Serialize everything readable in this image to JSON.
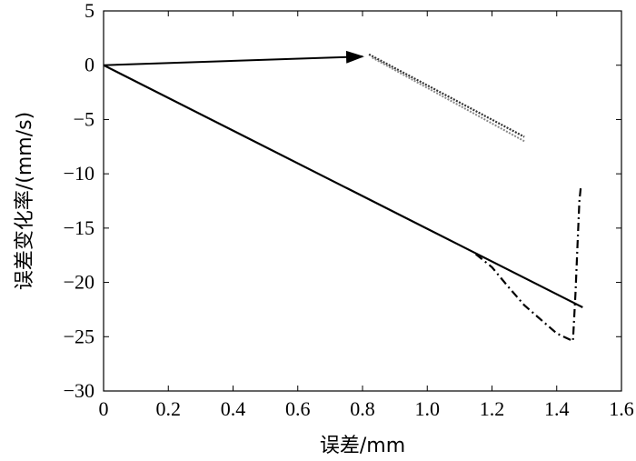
{
  "chart_data": {
    "type": "line",
    "xlabel": "误差/mm",
    "ylabel": "误差变化率/(mm/s)",
    "xlim": [
      0,
      1.6
    ],
    "ylim": [
      -30,
      5
    ],
    "x_ticks": [
      0,
      0.2,
      0.4,
      0.6,
      0.8,
      1.0,
      1.2,
      1.4,
      1.6
    ],
    "x_tick_labels": [
      "0",
      "0.2",
      "0.4",
      "0.6",
      "0.8",
      "1.0",
      "1.2",
      "1.4",
      "1.6"
    ],
    "y_ticks": [
      5,
      0,
      -5,
      -10,
      -15,
      -20,
      -25,
      -30
    ],
    "y_tick_labels": [
      "5",
      "0",
      "−5",
      "−10",
      "−15",
      "−20",
      "−25",
      "−30"
    ],
    "grid": false,
    "series": [
      {
        "style": "solid",
        "x": [
          0,
          1.48
        ],
        "y": [
          0,
          -22.3
        ]
      },
      {
        "style": "dash-dot",
        "x": [
          1.15,
          1.2,
          1.25,
          1.3,
          1.35,
          1.4,
          1.45,
          1.458,
          1.465,
          1.47,
          1.475
        ],
        "y": [
          -17.4,
          -18.6,
          -20.4,
          -22.1,
          -23.4,
          -24.7,
          -25.4,
          -21.0,
          -16.0,
          -12.5,
          -11.0
        ]
      },
      {
        "style": "dotted-dark",
        "x": [
          0.82,
          1.3
        ],
        "y": [
          1.0,
          -6.6
        ]
      },
      {
        "style": "dotted-light",
        "x": [
          0.83,
          1.3
        ],
        "y": [
          0.7,
          -7.0
        ]
      }
    ],
    "annotations": [
      {
        "type": "arrow",
        "from": [
          0,
          0
        ],
        "to": [
          0.8,
          0.8
        ]
      }
    ]
  }
}
